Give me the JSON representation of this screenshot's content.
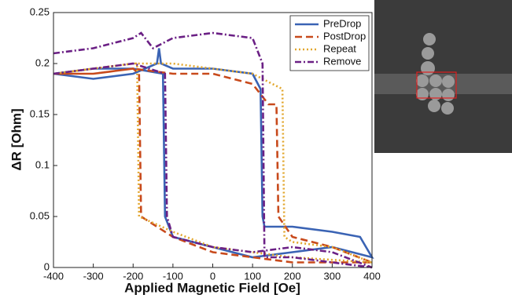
{
  "chart_data": {
    "type": "line",
    "xlabel": "Applied Magnetic Field [Oe]",
    "ylabel": "ΔR [Ohm]",
    "xlim": [
      -400,
      400
    ],
    "xticks": [
      -400,
      -300,
      -200,
      -100,
      0,
      100,
      200,
      300,
      400
    ],
    "ylim": [
      0,
      0.25
    ],
    "yticks": [
      0,
      0.05,
      0.1,
      0.15,
      0.2,
      0.25
    ],
    "legend": "upper right",
    "series": [
      {
        "name": "PreDrop",
        "color": "#3a63b4",
        "linestyle": "solid",
        "x": [
          -400,
          -300,
          -200,
          -140,
          -135,
          -130,
          -100,
          0,
          100,
          120,
          125,
          130,
          200,
          300,
          370,
          400,
          300,
          200,
          100,
          0,
          -100,
          -120,
          -125,
          -200,
          -300,
          -400
        ],
        "values": [
          0.19,
          0.185,
          0.19,
          0.2,
          0.215,
          0.2,
          0.195,
          0.195,
          0.19,
          0.175,
          0.05,
          0.04,
          0.04,
          0.035,
          0.03,
          0.01,
          0.02,
          0.015,
          0.01,
          0.02,
          0.03,
          0.05,
          0.19,
          0.195,
          0.195,
          0.19
        ]
      },
      {
        "name": "PostDrop",
        "color": "#c84a1c",
        "linestyle": "dashed",
        "x": [
          -400,
          -300,
          -200,
          -185,
          -180,
          -100,
          0,
          100,
          200,
          400,
          300,
          200,
          165,
          160,
          140,
          100,
          0,
          -100,
          -200,
          -300,
          -400
        ],
        "values": [
          0.19,
          0.19,
          0.195,
          0.19,
          0.05,
          0.03,
          0.015,
          0.01,
          0.005,
          0.005,
          0.02,
          0.03,
          0.05,
          0.16,
          0.16,
          0.18,
          0.19,
          0.19,
          0.195,
          0.19,
          0.19
        ]
      },
      {
        "name": "Repeat",
        "color": "#e2a72e",
        "linestyle": "dotted",
        "x": [
          -400,
          -300,
          -200,
          -190,
          -185,
          -100,
          0,
          100,
          200,
          400,
          300,
          200,
          180,
          175,
          150,
          100,
          0,
          -100,
          -200,
          -300,
          -400
        ],
        "values": [
          0.19,
          0.195,
          0.2,
          0.2,
          0.05,
          0.035,
          0.02,
          0.015,
          0.01,
          0.005,
          0.02,
          0.025,
          0.03,
          0.175,
          0.18,
          0.19,
          0.195,
          0.2,
          0.2,
          0.195,
          0.19
        ]
      },
      {
        "name": "Remove",
        "color": "#6b2085",
        "linestyle": "dashdot",
        "x": [
          -400,
          -300,
          -200,
          -180,
          -150,
          -100,
          0,
          100,
          125,
          130,
          200,
          300,
          400,
          300,
          200,
          100,
          0,
          -100,
          -115,
          -120,
          -200,
          -300,
          -400
        ],
        "values": [
          0.21,
          0.215,
          0.225,
          0.23,
          0.215,
          0.225,
          0.23,
          0.225,
          0.2,
          0.01,
          0.01,
          0.005,
          0.0,
          0.015,
          0.02,
          0.015,
          0.02,
          0.03,
          0.05,
          0.19,
          0.2,
          0.195,
          0.19
        ]
      }
    ]
  }
}
